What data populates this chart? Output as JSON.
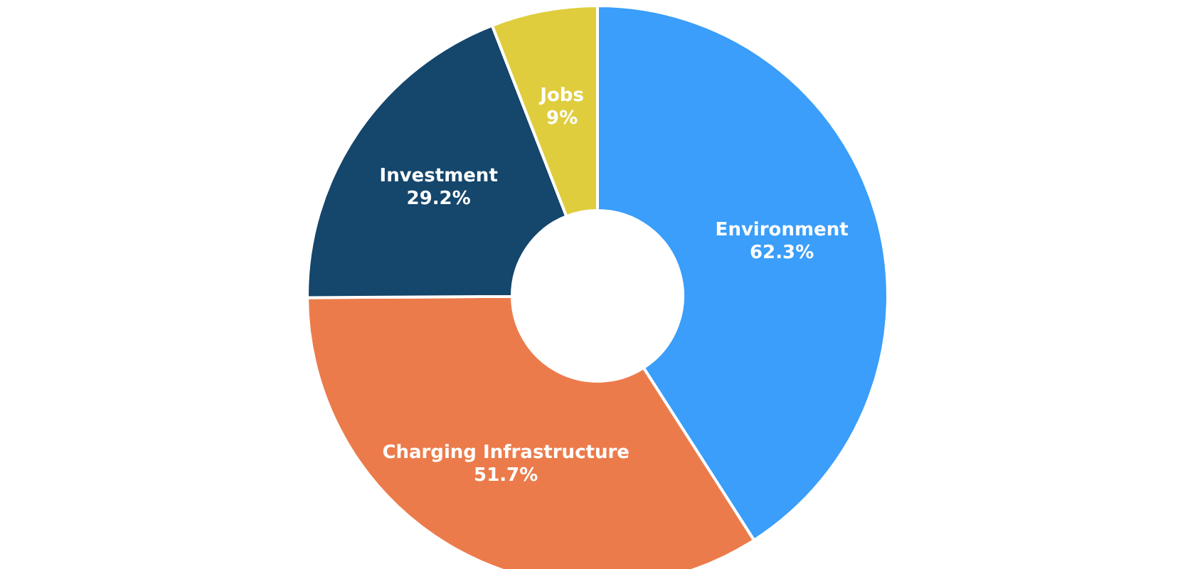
{
  "chart_data": {
    "type": "donut",
    "categories": [
      "Environment",
      "Charging Infrastructure",
      "Investment",
      "Jobs"
    ],
    "values": [
      62.3,
      51.7,
      29.2,
      9
    ],
    "value_labels": [
      "62.3%",
      "51.7%",
      "29.2%",
      "9%"
    ],
    "colors": [
      "#3a9efa",
      "#ec7b4b",
      "#15466b",
      "#dfcd3e"
    ],
    "legend": false
  }
}
